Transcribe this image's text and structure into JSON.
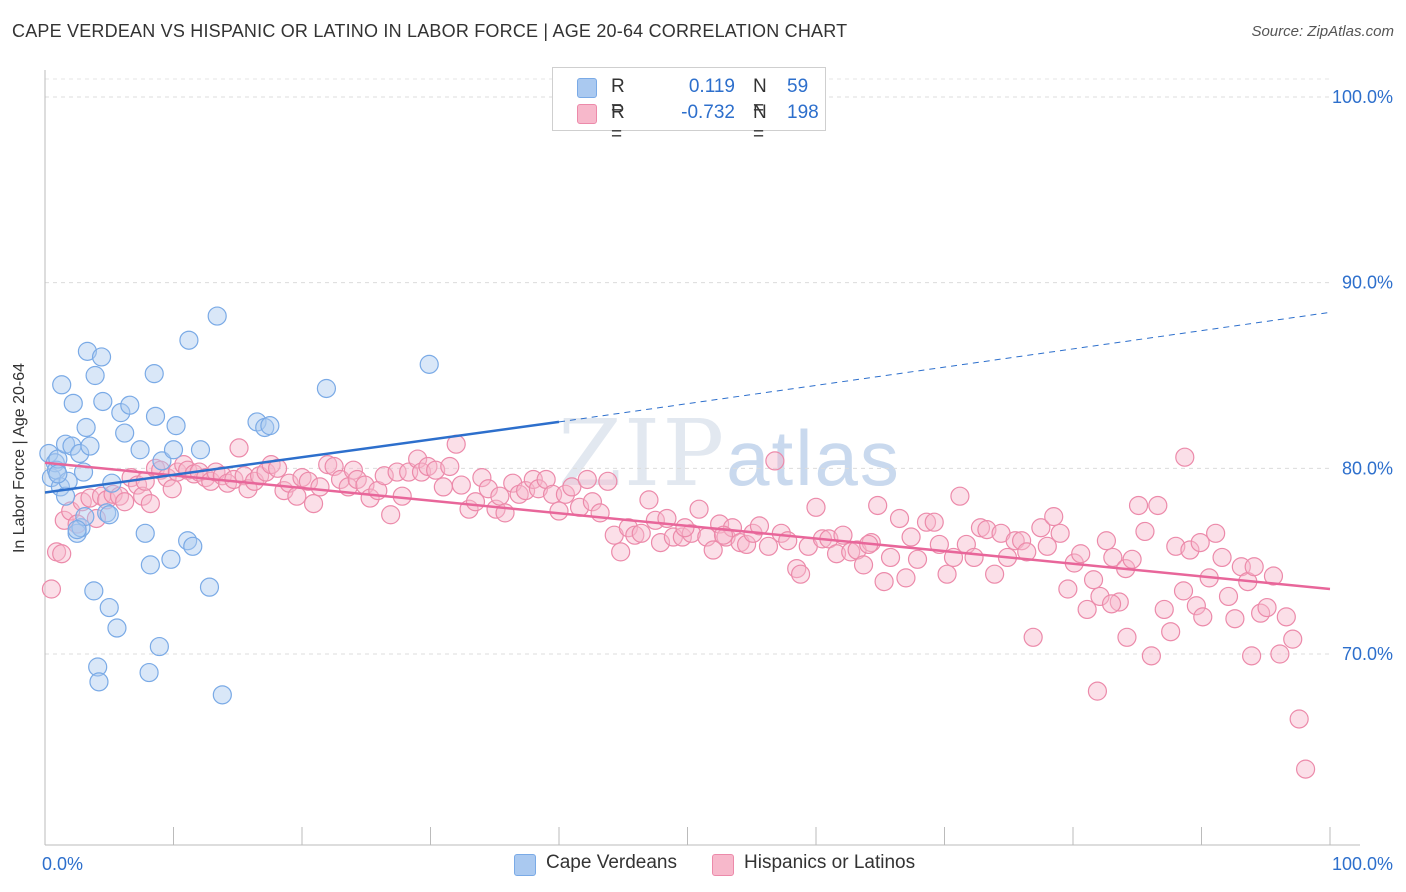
{
  "header": {
    "title": "CAPE VERDEAN VS HISPANIC OR LATINO IN LABOR FORCE | AGE 20-64 CORRELATION CHART",
    "source": "Source: ZipAtlas.com"
  },
  "watermark": {
    "zip": "ZIP",
    "atlas": "atlas"
  },
  "legend_top": {
    "rows": [
      {
        "r_label": "R =",
        "r_value": "0.119",
        "n_label": "N =",
        "n_value": "59",
        "color": "#aac9f0"
      },
      {
        "r_label": "R =",
        "r_value": "-0.732",
        "n_label": "N =",
        "n_value": "198",
        "color": "#f7b8cb"
      }
    ]
  },
  "legend_bottom": [
    {
      "label": "Cape Verdeans",
      "color": "#aac9f0"
    },
    {
      "label": "Hispanics or Latinos",
      "color": "#f7b8cb"
    }
  ],
  "chart_data": {
    "type": "scatter",
    "title": "CAPE VERDEAN VS HISPANIC OR LATINO IN LABOR FORCE | AGE 20-64 CORRELATION CHART",
    "ylabel": "In Labor Force | Age 20-64",
    "xlabel": "",
    "xlim": [
      0,
      100
    ],
    "ylim": [
      60,
      102
    ],
    "x_tick_labels": [
      "0.0%",
      "100.0%"
    ],
    "y_ticks": [
      70,
      80,
      90,
      100
    ],
    "y_tick_labels": [
      "70.0%",
      "80.0%",
      "90.0%",
      "100.0%"
    ],
    "grid": true,
    "legend": "top-center",
    "colors": {
      "blue_stroke": "#7aaae6",
      "blue_fill": "#aac9f0",
      "blue_line": "#2d6fcc",
      "pink_stroke": "#ec8aaa",
      "pink_fill": "#f7b8cb",
      "pink_line": "#e8669a",
      "axis_label": "#2d6fcc"
    },
    "series": [
      {
        "name": "Cape Verdeans",
        "r": 0.119,
        "n": 59,
        "trend": {
          "solid": [
            [
              0,
              78.7
            ],
            [
              40,
              82.5
            ]
          ],
          "dashed": [
            [
              40,
              82.5
            ],
            [
              100,
              88.4
            ]
          ]
        },
        "points": [
          [
            0.3,
            80.8
          ],
          [
            0.5,
            79.5
          ],
          [
            0.8,
            80.3
          ],
          [
            0.9,
            79.9
          ],
          [
            1.0,
            80.5
          ],
          [
            1.2,
            79.0
          ],
          [
            1.3,
            84.5
          ],
          [
            1.6,
            81.3
          ],
          [
            1.6,
            78.5
          ],
          [
            1.8,
            79.3
          ],
          [
            2.1,
            81.2
          ],
          [
            2.2,
            83.5
          ],
          [
            2.5,
            76.5
          ],
          [
            2.7,
            80.8
          ],
          [
            2.8,
            76.8
          ],
          [
            3.0,
            79.8
          ],
          [
            3.1,
            77.4
          ],
          [
            3.2,
            82.2
          ],
          [
            3.3,
            86.3
          ],
          [
            3.5,
            81.2
          ],
          [
            3.8,
            73.4
          ],
          [
            3.9,
            85.0
          ],
          [
            4.1,
            69.3
          ],
          [
            4.2,
            68.5
          ],
          [
            4.4,
            86.0
          ],
          [
            4.5,
            83.6
          ],
          [
            4.8,
            77.6
          ],
          [
            5.0,
            72.5
          ],
          [
            5.2,
            79.2
          ],
          [
            5.6,
            71.4
          ],
          [
            5.9,
            83.0
          ],
          [
            6.2,
            81.9
          ],
          [
            6.6,
            83.4
          ],
          [
            7.4,
            81.0
          ],
          [
            7.8,
            76.5
          ],
          [
            8.1,
            69.0
          ],
          [
            8.2,
            74.8
          ],
          [
            8.5,
            85.1
          ],
          [
            8.6,
            82.8
          ],
          [
            8.9,
            70.4
          ],
          [
            9.1,
            80.4
          ],
          [
            9.8,
            75.1
          ],
          [
            10.0,
            81.0
          ],
          [
            10.2,
            82.3
          ],
          [
            11.1,
            76.1
          ],
          [
            11.2,
            86.9
          ],
          [
            11.5,
            75.8
          ],
          [
            12.1,
            81.0
          ],
          [
            12.8,
            73.6
          ],
          [
            13.4,
            88.2
          ],
          [
            13.8,
            67.8
          ],
          [
            16.5,
            82.5
          ],
          [
            17.1,
            82.2
          ],
          [
            17.5,
            82.3
          ],
          [
            21.9,
            84.3
          ],
          [
            29.9,
            85.6
          ],
          [
            5.0,
            77.5
          ],
          [
            2.5,
            76.7
          ],
          [
            1.0,
            79.7
          ]
        ]
      },
      {
        "name": "Hispanics or Latinos",
        "r": -0.732,
        "n": 198,
        "trend": {
          "solid": [
            [
              0,
              80.3
            ],
            [
              100,
              73.5
            ]
          ]
        },
        "points": [
          [
            0.5,
            73.5
          ],
          [
            0.9,
            75.5
          ],
          [
            1.3,
            75.4
          ],
          [
            1.5,
            77.2
          ],
          [
            2.0,
            77.7
          ],
          [
            2.5,
            77.0
          ],
          [
            2.9,
            78.2
          ],
          [
            3.5,
            78.4
          ],
          [
            4.0,
            77.3
          ],
          [
            4.4,
            78.5
          ],
          [
            4.8,
            78.3
          ],
          [
            5.3,
            78.6
          ],
          [
            5.8,
            78.5
          ],
          [
            6.2,
            78.2
          ],
          [
            6.7,
            79.5
          ],
          [
            7.2,
            79.1
          ],
          [
            7.6,
            78.5
          ],
          [
            7.8,
            79.3
          ],
          [
            8.2,
            78.1
          ],
          [
            8.6,
            80.0
          ],
          [
            9.0,
            79.9
          ],
          [
            9.5,
            79.5
          ],
          [
            9.9,
            78.9
          ],
          [
            10.3,
            79.8
          ],
          [
            10.8,
            80.2
          ],
          [
            11.1,
            79.9
          ],
          [
            11.6,
            79.7
          ],
          [
            12.0,
            79.8
          ],
          [
            12.5,
            79.5
          ],
          [
            12.9,
            79.3
          ],
          [
            13.3,
            79.8
          ],
          [
            13.8,
            79.6
          ],
          [
            14.2,
            79.2
          ],
          [
            14.7,
            79.4
          ],
          [
            15.1,
            81.1
          ],
          [
            15.5,
            79.6
          ],
          [
            15.8,
            78.9
          ],
          [
            16.3,
            79.3
          ],
          [
            16.7,
            79.6
          ],
          [
            17.2,
            79.8
          ],
          [
            17.6,
            80.2
          ],
          [
            18.1,
            80.0
          ],
          [
            18.6,
            78.8
          ],
          [
            19.0,
            79.2
          ],
          [
            19.6,
            78.5
          ],
          [
            20.0,
            79.5
          ],
          [
            20.5,
            79.3
          ],
          [
            20.9,
            78.1
          ],
          [
            21.4,
            79.0
          ],
          [
            22.0,
            80.2
          ],
          [
            22.5,
            80.1
          ],
          [
            23.0,
            79.4
          ],
          [
            23.6,
            79.0
          ],
          [
            24.0,
            79.9
          ],
          [
            24.3,
            79.4
          ],
          [
            24.9,
            79.1
          ],
          [
            25.3,
            78.4
          ],
          [
            25.9,
            78.8
          ],
          [
            26.4,
            79.6
          ],
          [
            26.9,
            77.5
          ],
          [
            27.4,
            79.8
          ],
          [
            27.8,
            78.5
          ],
          [
            28.3,
            79.8
          ],
          [
            29.0,
            80.5
          ],
          [
            29.3,
            79.8
          ],
          [
            29.8,
            80.1
          ],
          [
            30.4,
            79.9
          ],
          [
            31.0,
            79.0
          ],
          [
            31.5,
            80.1
          ],
          [
            32.0,
            81.3
          ],
          [
            32.4,
            79.1
          ],
          [
            33.0,
            77.8
          ],
          [
            33.5,
            78.2
          ],
          [
            34.0,
            79.5
          ],
          [
            34.5,
            78.9
          ],
          [
            35.1,
            77.8
          ],
          [
            35.4,
            78.5
          ],
          [
            35.8,
            77.6
          ],
          [
            36.4,
            79.2
          ],
          [
            36.9,
            78.6
          ],
          [
            37.4,
            78.8
          ],
          [
            38.0,
            79.4
          ],
          [
            38.4,
            78.9
          ],
          [
            39.0,
            79.4
          ],
          [
            39.5,
            78.6
          ],
          [
            40.0,
            77.7
          ],
          [
            40.5,
            78.6
          ],
          [
            41.0,
            79.0
          ],
          [
            41.6,
            77.9
          ],
          [
            42.2,
            79.4
          ],
          [
            42.6,
            78.2
          ],
          [
            43.2,
            77.6
          ],
          [
            43.8,
            79.3
          ],
          [
            44.3,
            76.4
          ],
          [
            44.8,
            75.5
          ],
          [
            45.4,
            76.8
          ],
          [
            45.9,
            76.4
          ],
          [
            46.4,
            76.5
          ],
          [
            47.0,
            78.3
          ],
          [
            47.5,
            77.2
          ],
          [
            47.9,
            76.0
          ],
          [
            48.4,
            77.3
          ],
          [
            48.9,
            76.3
          ],
          [
            49.6,
            76.3
          ],
          [
            50.3,
            76.5
          ],
          [
            50.9,
            77.8
          ],
          [
            51.5,
            76.3
          ],
          [
            52.0,
            75.6
          ],
          [
            52.5,
            77.0
          ],
          [
            53.0,
            76.3
          ],
          [
            53.5,
            76.8
          ],
          [
            54.1,
            76.0
          ],
          [
            54.6,
            75.9
          ],
          [
            55.1,
            76.5
          ],
          [
            55.6,
            76.9
          ],
          [
            56.3,
            75.8
          ],
          [
            56.8,
            80.4
          ],
          [
            57.3,
            76.5
          ],
          [
            57.8,
            76.1
          ],
          [
            58.5,
            74.6
          ],
          [
            58.8,
            74.3
          ],
          [
            59.4,
            75.8
          ],
          [
            60.0,
            77.9
          ],
          [
            60.5,
            76.2
          ],
          [
            61.0,
            76.2
          ],
          [
            61.6,
            75.4
          ],
          [
            62.1,
            76.4
          ],
          [
            62.7,
            75.5
          ],
          [
            63.2,
            75.6
          ],
          [
            63.7,
            74.8
          ],
          [
            64.3,
            76.0
          ],
          [
            64.8,
            78.0
          ],
          [
            65.3,
            73.9
          ],
          [
            65.8,
            75.2
          ],
          [
            66.5,
            77.3
          ],
          [
            67.0,
            74.1
          ],
          [
            67.4,
            76.3
          ],
          [
            67.9,
            75.1
          ],
          [
            68.6,
            77.1
          ],
          [
            69.2,
            77.1
          ],
          [
            69.6,
            75.9
          ],
          [
            70.2,
            74.3
          ],
          [
            70.7,
            75.2
          ],
          [
            71.2,
            78.5
          ],
          [
            71.7,
            75.9
          ],
          [
            72.3,
            75.2
          ],
          [
            72.8,
            76.8
          ],
          [
            73.3,
            76.7
          ],
          [
            73.9,
            74.3
          ],
          [
            74.4,
            76.5
          ],
          [
            74.9,
            75.2
          ],
          [
            75.5,
            76.1
          ],
          [
            76.0,
            76.1
          ],
          [
            76.4,
            75.5
          ],
          [
            76.9,
            70.9
          ],
          [
            77.5,
            76.8
          ],
          [
            78.0,
            75.8
          ],
          [
            78.5,
            77.4
          ],
          [
            79.0,
            76.5
          ],
          [
            79.6,
            73.5
          ],
          [
            80.1,
            74.9
          ],
          [
            80.6,
            75.4
          ],
          [
            81.1,
            72.4
          ],
          [
            81.6,
            74.0
          ],
          [
            82.1,
            73.1
          ],
          [
            82.6,
            76.1
          ],
          [
            83.1,
            75.2
          ],
          [
            83.6,
            72.8
          ],
          [
            84.1,
            74.6
          ],
          [
            84.6,
            75.1
          ],
          [
            85.1,
            78.0
          ],
          [
            85.6,
            76.6
          ],
          [
            86.1,
            69.9
          ],
          [
            86.6,
            78.0
          ],
          [
            87.1,
            72.4
          ],
          [
            87.6,
            71.2
          ],
          [
            88.0,
            75.8
          ],
          [
            88.6,
            73.4
          ],
          [
            89.1,
            75.6
          ],
          [
            89.6,
            72.6
          ],
          [
            90.1,
            72.0
          ],
          [
            90.6,
            74.1
          ],
          [
            91.1,
            76.5
          ],
          [
            91.6,
            75.2
          ],
          [
            92.1,
            73.1
          ],
          [
            92.6,
            71.9
          ],
          [
            93.1,
            74.7
          ],
          [
            93.6,
            73.9
          ],
          [
            94.1,
            74.7
          ],
          [
            94.6,
            72.2
          ],
          [
            95.1,
            72.5
          ],
          [
            95.6,
            74.2
          ],
          [
            96.1,
            70.0
          ],
          [
            96.6,
            72.0
          ],
          [
            97.1,
            70.8
          ],
          [
            97.6,
            66.5
          ],
          [
            98.1,
            63.8
          ],
          [
            81.9,
            68.0
          ],
          [
            83.0,
            72.7
          ],
          [
            84.2,
            70.9
          ],
          [
            88.7,
            80.6
          ],
          [
            52.8,
            76.4
          ],
          [
            49.8,
            76.8
          ],
          [
            93.9,
            69.9
          ],
          [
            89.9,
            76.0
          ],
          [
            64.1,
            75.9
          ]
        ]
      }
    ]
  }
}
